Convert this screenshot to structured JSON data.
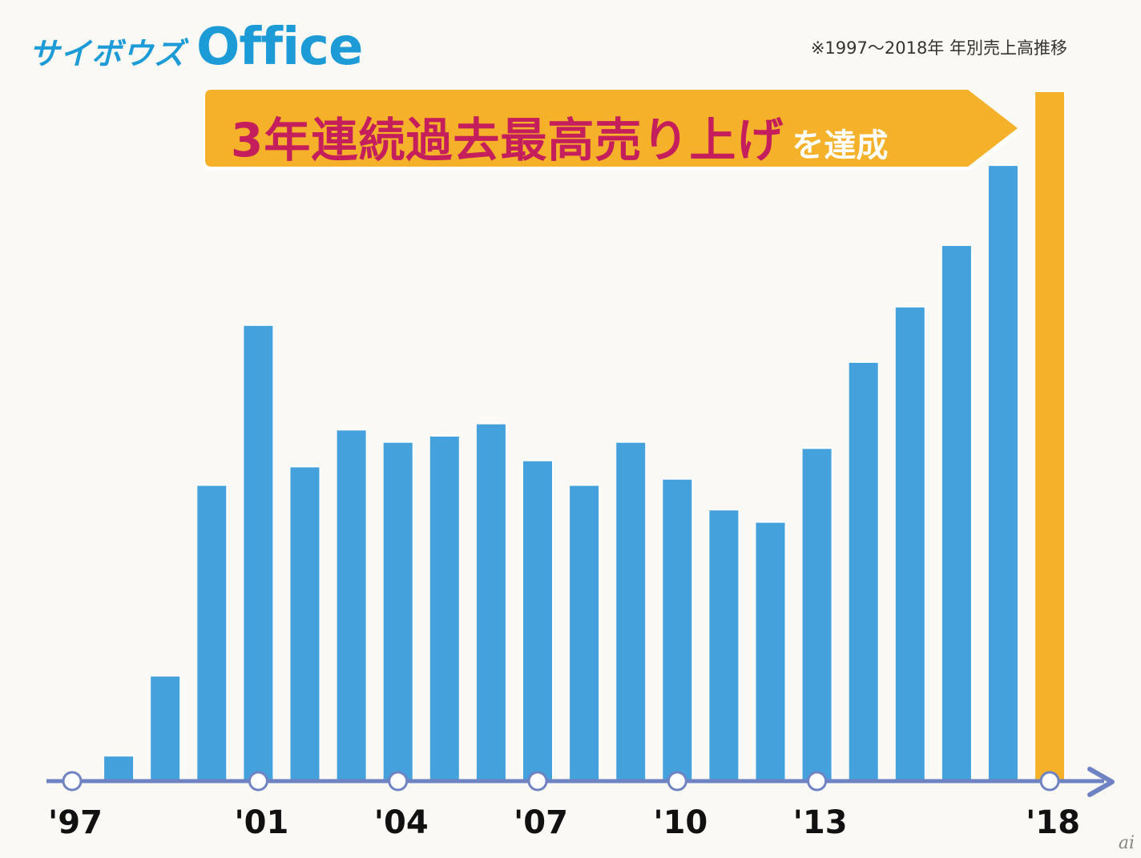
{
  "header": {
    "logo_kana": "サイボウズ",
    "logo_word": "Office",
    "subtitle": "※1997〜2018年 年別売上高推移"
  },
  "banner": {
    "main_text": "3年連続過去最高売り上げ",
    "sub_text": "を達成",
    "color": "#f5b12a",
    "text_color": "#c41e5c"
  },
  "watermark": "ai",
  "chart_data": {
    "type": "bar",
    "title": "",
    "xlabel": "",
    "ylabel": "",
    "categories": [
      "1997",
      "1998",
      "1999",
      "2000",
      "2001",
      "2002",
      "2003",
      "2004",
      "2005",
      "2006",
      "2007",
      "2008",
      "2009",
      "2010",
      "2011",
      "2012",
      "2013",
      "2014",
      "2015",
      "2016",
      "2017",
      "2018"
    ],
    "values": [
      0,
      4,
      17,
      48,
      74,
      51,
      57,
      55,
      56,
      58,
      52,
      48,
      55,
      49,
      44,
      42,
      54,
      68,
      77,
      87,
      100,
      112
    ],
    "bar_colors": {
      "default": "#45a1dc",
      "highlight": "#f5b12a"
    },
    "highlight_category": "2018",
    "tick_labels": [
      {
        "category": "1997",
        "label": "'97"
      },
      {
        "category": "2001",
        "label": "'01"
      },
      {
        "category": "2004",
        "label": "'04"
      },
      {
        "category": "2007",
        "label": "'07"
      },
      {
        "category": "2010",
        "label": "'10"
      },
      {
        "category": "2013",
        "label": "'13"
      },
      {
        "category": "2018",
        "label": "'18"
      }
    ],
    "axis_color": "#6f83c3",
    "ylim": [
      0,
      112
    ],
    "grid": false,
    "legend": "none"
  }
}
